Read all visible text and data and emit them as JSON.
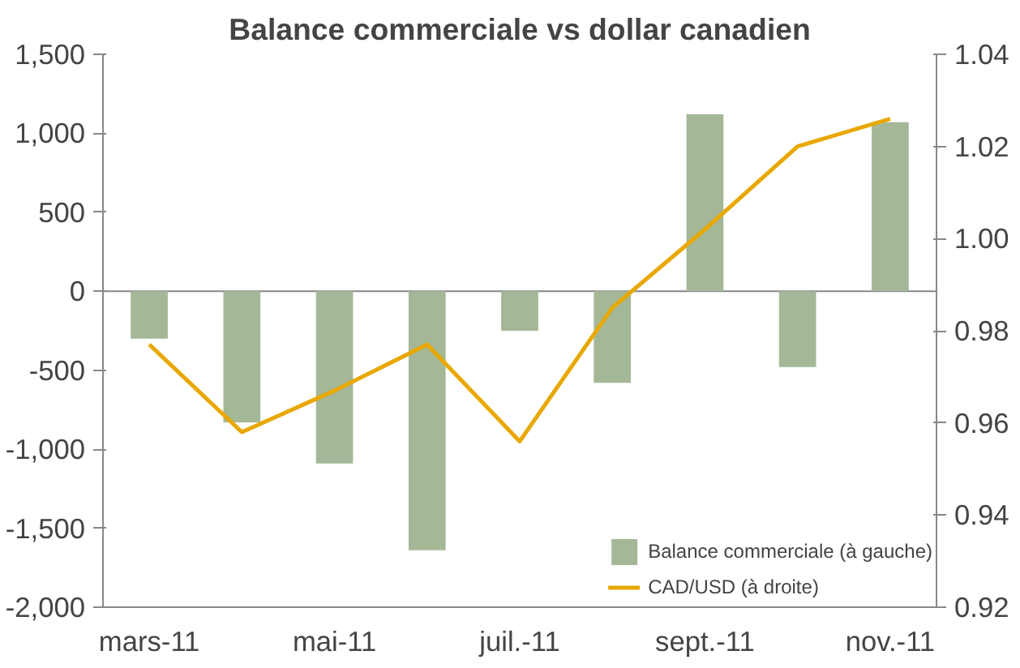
{
  "chart_data": {
    "type": "bar",
    "title": "Balance commerciale vs dollar canadien",
    "categories": [
      "mars-11",
      null,
      "mai-11",
      null,
      "juil.-11",
      null,
      "sept.-11",
      null,
      "nov.-11"
    ],
    "series": [
      {
        "name": "Balance commerciale (à gauche)",
        "color": "#a4b897",
        "values": [
          -300,
          -830,
          -1090,
          -1640,
          -250,
          -580,
          1120,
          -480,
          1070
        ]
      },
      {
        "name": "CAD/USD (à droite)",
        "type": "line",
        "axis": "y2",
        "color": "#e8a800",
        "values": [
          0.977,
          0.958,
          0.967,
          0.977,
          0.956,
          0.985,
          1.002,
          1.02,
          1.026
        ]
      }
    ],
    "ylim": [
      -2000,
      1500
    ],
    "yticks": [
      {
        "value": -2000,
        "label": "-2,000"
      },
      {
        "value": -1500,
        "label": "-1,500"
      },
      {
        "value": -1000,
        "label": "-1,000"
      },
      {
        "value": -500,
        "label": "-500"
      },
      0,
      {
        "value": 500,
        "label": "500"
      },
      {
        "value": 1000,
        "label": "1,000"
      },
      {
        "value": 1500,
        "label": "1,500"
      }
    ],
    "y2lim": [
      0.92,
      1.04
    ],
    "y2ticks": [
      {
        "value": 0.92,
        "label": "0.92"
      },
      {
        "value": 0.94,
        "label": "0.94"
      },
      {
        "value": 0.96,
        "label": "0.96"
      },
      {
        "value": 0.98,
        "label": "0.98"
      },
      {
        "value": 1.0,
        "label": "1.00"
      },
      {
        "value": 1.02,
        "label": "1.02"
      },
      {
        "value": 1.04,
        "label": "1.04"
      }
    ],
    "legend": "bottom right"
  }
}
